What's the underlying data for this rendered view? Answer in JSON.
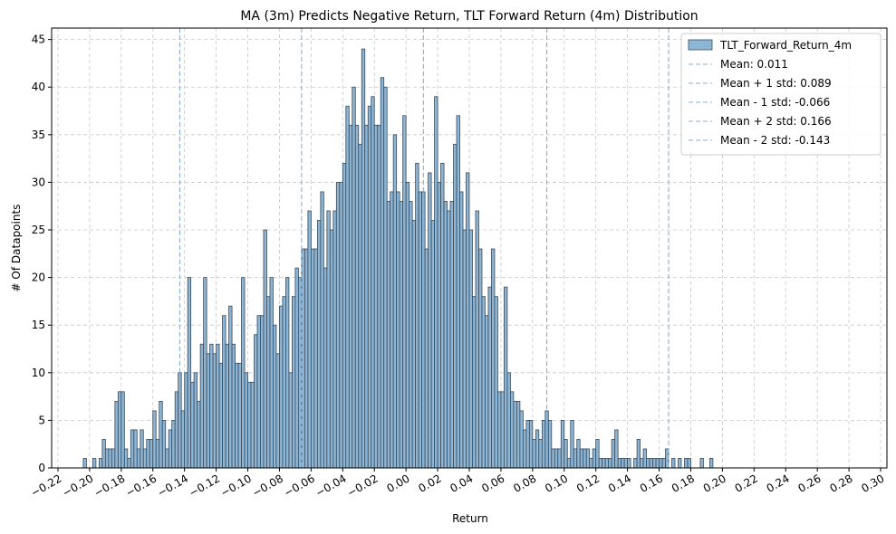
{
  "chart_data": {
    "type": "bar",
    "title": "MA (3m) Predicts Negative Return, TLT Forward Return (4m) Distribution",
    "xlabel": "Return",
    "ylabel": "# Of Datapoints",
    "xlim": [
      -0.224,
      0.304
    ],
    "ylim": [
      0,
      46.2
    ],
    "x_ticks": [
      "−0.22",
      "−0.20",
      "−0.18",
      "−0.16",
      "−0.14",
      "−0.12",
      "−0.10",
      "−0.08",
      "−0.06",
      "−0.04",
      "−0.02",
      "0.00",
      "0.02",
      "0.04",
      "0.06",
      "0.08",
      "0.10",
      "0.12",
      "0.14",
      "0.16",
      "0.18",
      "0.20",
      "0.22",
      "0.24",
      "0.26",
      "0.28",
      "0.30"
    ],
    "x_tick_values": [
      -0.22,
      -0.2,
      -0.18,
      -0.16,
      -0.14,
      -0.12,
      -0.1,
      -0.08,
      -0.06,
      -0.04,
      -0.02,
      0.0,
      0.02,
      0.04,
      0.06,
      0.08,
      0.1,
      0.12,
      0.14,
      0.16,
      0.18,
      0.2,
      0.22,
      0.24,
      0.26,
      0.28,
      0.3
    ],
    "y_ticks": [
      0,
      5,
      10,
      15,
      20,
      25,
      30,
      35,
      40,
      45
    ],
    "grid": true,
    "legend_position": "top-right",
    "bar_color": "#8db5d5",
    "bar_edge_color": "#3b4a57",
    "line_color": "#8aaed0",
    "series": [
      {
        "name": "TLT_Forward_Return_4m",
        "bin_start": -0.204,
        "bin_width": 0.002,
        "values": [
          1,
          0,
          0,
          1,
          0,
          1,
          3,
          2,
          2,
          2,
          7,
          8,
          8,
          2,
          1,
          4,
          4,
          2,
          4,
          2,
          3,
          3,
          6,
          3,
          7,
          5,
          2,
          4,
          5,
          8,
          10,
          6,
          10,
          20,
          9,
          10,
          7,
          13,
          20,
          12,
          13,
          12,
          13,
          11,
          16,
          13,
          17,
          13,
          11,
          11,
          20,
          10,
          9,
          9,
          14,
          16,
          16,
          25,
          18,
          20,
          15,
          12,
          17,
          18,
          20,
          10,
          18,
          21,
          20,
          23,
          23,
          27,
          23,
          23,
          26,
          29,
          21,
          27,
          25,
          27,
          30,
          30,
          32,
          38,
          36,
          40,
          36,
          34,
          44,
          36,
          38,
          39,
          36,
          36,
          41,
          40,
          28,
          29,
          35,
          29,
          28,
          37,
          30,
          28,
          26,
          32,
          29,
          29,
          23,
          31,
          26,
          39,
          30,
          32,
          28,
          27,
          28,
          34,
          37,
          29,
          25,
          31,
          25,
          18,
          27,
          23,
          18,
          16,
          19,
          23,
          18,
          8,
          8,
          19,
          10,
          8,
          7,
          7,
          6,
          4,
          5,
          5,
          3,
          4,
          3,
          5,
          6,
          5,
          2,
          2,
          2,
          5,
          3,
          1,
          5,
          2,
          3,
          2,
          2,
          2,
          1,
          2,
          3,
          1,
          1,
          1,
          1,
          3,
          4,
          1,
          1,
          1,
          1,
          0,
          1,
          3,
          1,
          2,
          1,
          1,
          1,
          1,
          1,
          1,
          2,
          0,
          1,
          0,
          1,
          0,
          1,
          1,
          0,
          0,
          0,
          1,
          0,
          0,
          1,
          0,
          0,
          0,
          0,
          0,
          0,
          0,
          0,
          0,
          0,
          0,
          0,
          0,
          0,
          0,
          0,
          0,
          0,
          0,
          0,
          0,
          0,
          0,
          0,
          0,
          0,
          0,
          0,
          0
        ]
      }
    ],
    "reference_lines": [
      {
        "name": "Mean: 0.011",
        "x": 0.011
      },
      {
        "name": "Mean + 1 std: 0.089",
        "x": 0.089
      },
      {
        "name": "Mean - 1 std: -0.066",
        "x": -0.066
      },
      {
        "name": "Mean + 2 std: 0.166",
        "x": 0.166
      },
      {
        "name": "Mean - 2 std: -0.143",
        "x": -0.143
      }
    ]
  }
}
